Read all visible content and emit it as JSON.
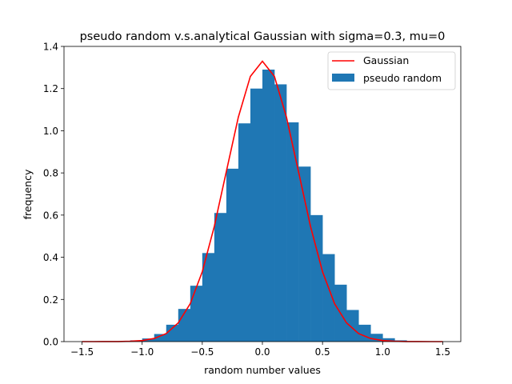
{
  "chart_data": {
    "type": "histogram+line",
    "title": "pseudo random v.s.analytical Gaussian with sigma=0.3, mu=0",
    "xlabel": "random number values",
    "ylabel": "frequency",
    "xlim": [
      -1.65,
      1.65
    ],
    "ylim": [
      0,
      1.4
    ],
    "x_ticks": [
      -1.5,
      -1.0,
      -0.5,
      0.0,
      0.5,
      1.0,
      1.5
    ],
    "x_tick_labels": [
      "−1.5",
      "−1.0",
      "−0.5",
      "0.0",
      "0.5",
      "1.0",
      "1.5"
    ],
    "y_ticks": [
      0.0,
      0.2,
      0.4,
      0.6,
      0.8,
      1.0,
      1.2,
      1.4
    ],
    "y_tick_labels": [
      "0.0",
      "0.2",
      "0.4",
      "0.6",
      "0.8",
      "1.0",
      "1.2",
      "1.4"
    ],
    "grid": false,
    "legend": {
      "placement": "top-right",
      "entries": [
        {
          "label": "Gaussian",
          "kind": "line",
          "color": "#ff0000"
        },
        {
          "label": "pseudo random",
          "kind": "patch",
          "color": "#1f77b4"
        }
      ]
    },
    "series": [
      {
        "name": "Gaussian",
        "kind": "line",
        "color": "#ff0000",
        "sigma": 0.3,
        "mu": 0,
        "x": [
          -1.5,
          -1.4,
          -1.3,
          -1.2,
          -1.1,
          -1.0,
          -0.9,
          -0.8,
          -0.7,
          -0.6,
          -0.5,
          -0.4,
          -0.3,
          -0.2,
          -0.1,
          0.0,
          0.1,
          0.2,
          0.3,
          0.4,
          0.5,
          0.6,
          0.7,
          0.8,
          0.9,
          1.0,
          1.1,
          1.2,
          1.3,
          1.4,
          1.5
        ],
        "y": [
          0.0,
          0.0,
          0.0001,
          0.0004,
          0.0016,
          0.0051,
          0.0148,
          0.038,
          0.0887,
          0.18,
          0.3316,
          0.5467,
          0.8066,
          1.0648,
          1.2579,
          1.3298,
          1.2579,
          1.0648,
          0.8066,
          0.5467,
          0.3316,
          0.18,
          0.0887,
          0.038,
          0.0148,
          0.0051,
          0.0016,
          0.0004,
          0.0001,
          0.0,
          0.0
        ]
      },
      {
        "name": "pseudo random",
        "kind": "histogram",
        "color": "#1f77b4",
        "bin_edges": [
          -1.5,
          -1.4,
          -1.3,
          -1.2,
          -1.1,
          -1.0,
          -0.9,
          -0.8,
          -0.7,
          -0.6,
          -0.5,
          -0.4,
          -0.3,
          -0.2,
          -0.1,
          0.0,
          0.1,
          0.2,
          0.3,
          0.4,
          0.5,
          0.6,
          0.7,
          0.8,
          0.9,
          1.0,
          1.1,
          1.2,
          1.3,
          1.4,
          1.5
        ],
        "heights": [
          0.0,
          0.0,
          0.001,
          0.002,
          0.006,
          0.015,
          0.036,
          0.08,
          0.155,
          0.265,
          0.42,
          0.61,
          0.82,
          1.035,
          1.2,
          1.29,
          1.22,
          1.04,
          0.83,
          0.6,
          0.415,
          0.27,
          0.15,
          0.08,
          0.037,
          0.016,
          0.006,
          0.002,
          0.001,
          0.0
        ]
      }
    ]
  }
}
